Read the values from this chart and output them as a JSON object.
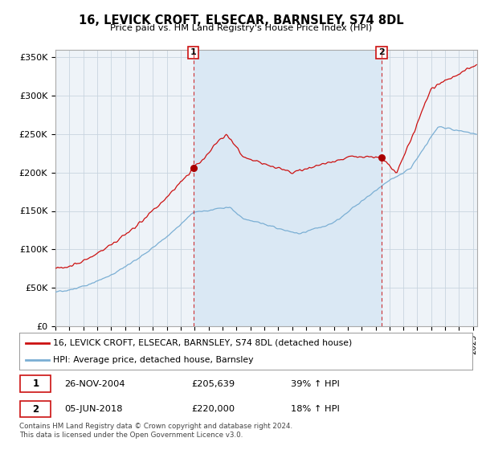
{
  "title": "16, LEVICK CROFT, ELSECAR, BARNSLEY, S74 8DL",
  "subtitle": "Price paid vs. HM Land Registry's House Price Index (HPI)",
  "ylim": [
    0,
    360000
  ],
  "yticks": [
    0,
    50000,
    100000,
    150000,
    200000,
    250000,
    300000,
    350000
  ],
  "ytick_labels": [
    "£0",
    "£50K",
    "£100K",
    "£150K",
    "£200K",
    "£250K",
    "£300K",
    "£350K"
  ],
  "hpi_color": "#7bafd4",
  "price_color": "#cc1111",
  "marker_color": "#aa0000",
  "shade_color": "#dae8f4",
  "background_color": "#eef3f8",
  "legend_label_red": "16, LEVICK CROFT, ELSECAR, BARNSLEY, S74 8DL (detached house)",
  "legend_label_blue": "HPI: Average price, detached house, Barnsley",
  "annotation1_date": "26-NOV-2004",
  "annotation1_price": "£205,639",
  "annotation1_hpi": "39% ↑ HPI",
  "annotation2_date": "05-JUN-2018",
  "annotation2_price": "£220,000",
  "annotation2_hpi": "18% ↑ HPI",
  "footer": "Contains HM Land Registry data © Crown copyright and database right 2024.\nThis data is licensed under the Open Government Licence v3.0.",
  "sale1_x": 2004.9,
  "sale1_y": 205639,
  "sale2_x": 2018.43,
  "sale2_y": 220000,
  "xmin": 1995,
  "xmax": 2025.3
}
